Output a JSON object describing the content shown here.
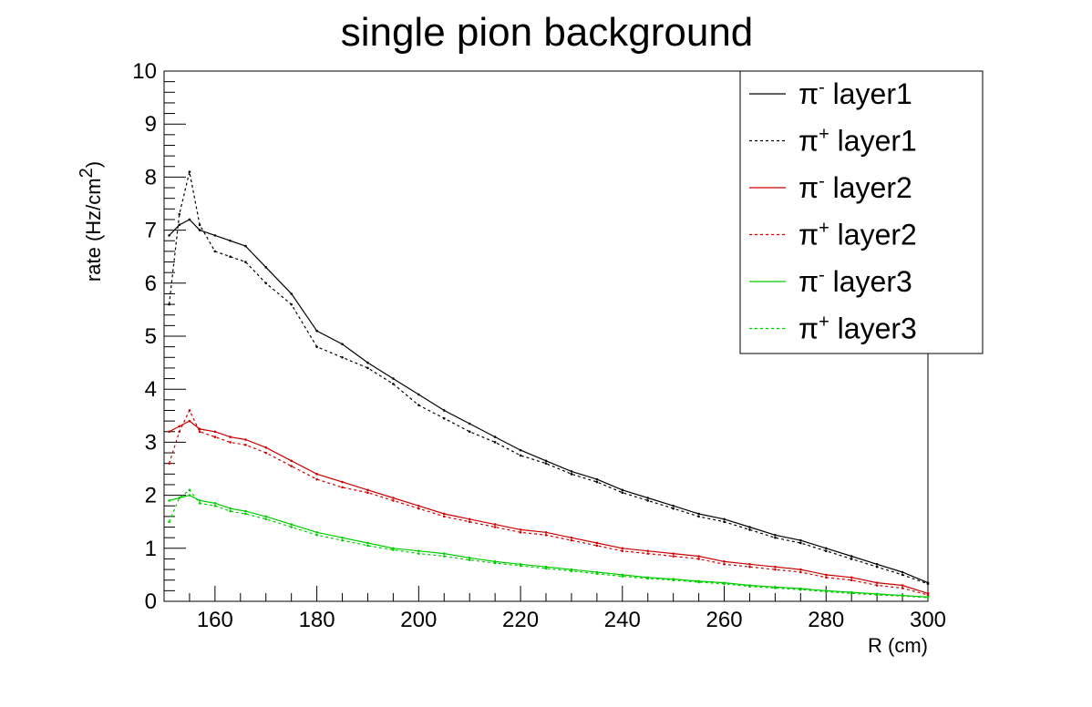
{
  "chart_data": {
    "type": "line",
    "title": "single pion background",
    "xlabel": "R (cm)",
    "ylabel": "rate (Hz/cm",
    "ylabel_sup": "2",
    "ylabel_end": ")",
    "xlim": [
      150,
      300
    ],
    "ylim": [
      0,
      10
    ],
    "x_ticks": [
      160,
      180,
      200,
      220,
      240,
      260,
      280,
      300
    ],
    "y_ticks": [
      0,
      1,
      2,
      3,
      4,
      5,
      6,
      7,
      8,
      9,
      10
    ],
    "legend_position": "top-right",
    "grid": false,
    "x": [
      151,
      153,
      155,
      157,
      160,
      163,
      166,
      170,
      175,
      180,
      185,
      190,
      195,
      200,
      205,
      210,
      215,
      220,
      225,
      230,
      235,
      240,
      245,
      250,
      255,
      260,
      265,
      270,
      275,
      280,
      285,
      290,
      295,
      300
    ],
    "series": [
      {
        "name": "π⁻ layer1",
        "label_base": "π",
        "label_sup": "-",
        "label_rest": " layer1",
        "color": "#000000",
        "dash": "solid",
        "values": [
          6.9,
          7.1,
          7.2,
          7.0,
          6.9,
          6.8,
          6.7,
          6.3,
          5.8,
          5.1,
          4.85,
          4.5,
          4.2,
          3.9,
          3.6,
          3.35,
          3.1,
          2.85,
          2.65,
          2.45,
          2.3,
          2.1,
          1.95,
          1.8,
          1.65,
          1.55,
          1.4,
          1.25,
          1.15,
          1.0,
          0.85,
          0.7,
          0.55,
          0.35
        ]
      },
      {
        "name": "π⁺ layer1",
        "label_base": "π",
        "label_sup": "+",
        "label_rest": " layer1",
        "color": "#000000",
        "dash": "dotted",
        "values": [
          5.6,
          7.3,
          8.1,
          7.1,
          6.6,
          6.5,
          6.4,
          6.0,
          5.6,
          4.8,
          4.6,
          4.4,
          4.1,
          3.7,
          3.45,
          3.2,
          3.0,
          2.75,
          2.6,
          2.4,
          2.25,
          2.05,
          1.9,
          1.75,
          1.6,
          1.5,
          1.35,
          1.2,
          1.1,
          0.95,
          0.8,
          0.65,
          0.5,
          0.33
        ]
      },
      {
        "name": "π⁻ layer2",
        "label_base": "π",
        "label_sup": "-",
        "label_rest": " layer2",
        "color": "#cc0000",
        "dash": "solid",
        "values": [
          3.2,
          3.3,
          3.4,
          3.25,
          3.2,
          3.1,
          3.05,
          2.9,
          2.65,
          2.4,
          2.25,
          2.1,
          1.95,
          1.8,
          1.65,
          1.55,
          1.45,
          1.35,
          1.3,
          1.2,
          1.1,
          1.0,
          0.95,
          0.9,
          0.85,
          0.75,
          0.7,
          0.65,
          0.6,
          0.5,
          0.45,
          0.35,
          0.3,
          0.15
        ]
      },
      {
        "name": "π⁺ layer2",
        "label_base": "π",
        "label_sup": "+",
        "label_rest": " layer2",
        "color": "#cc0000",
        "dash": "dotted",
        "values": [
          2.6,
          3.2,
          3.6,
          3.2,
          3.1,
          3.0,
          2.95,
          2.8,
          2.55,
          2.3,
          2.15,
          2.05,
          1.9,
          1.75,
          1.6,
          1.5,
          1.4,
          1.3,
          1.25,
          1.15,
          1.05,
          0.95,
          0.9,
          0.85,
          0.8,
          0.7,
          0.65,
          0.6,
          0.55,
          0.45,
          0.4,
          0.3,
          0.25,
          0.12
        ]
      },
      {
        "name": "π⁻ layer3",
        "label_base": "π",
        "label_sup": "-",
        "label_rest": " layer3",
        "color": "#00cc00",
        "dash": "solid",
        "values": [
          1.9,
          1.95,
          2.0,
          1.9,
          1.85,
          1.75,
          1.7,
          1.6,
          1.45,
          1.3,
          1.2,
          1.1,
          1.0,
          0.95,
          0.9,
          0.82,
          0.75,
          0.7,
          0.65,
          0.6,
          0.55,
          0.5,
          0.45,
          0.42,
          0.38,
          0.35,
          0.3,
          0.27,
          0.24,
          0.2,
          0.17,
          0.14,
          0.11,
          0.08
        ]
      },
      {
        "name": "π⁺ layer3",
        "label_base": "π",
        "label_sup": "+",
        "label_rest": " layer3",
        "color": "#00cc00",
        "dash": "dotted",
        "values": [
          1.5,
          1.95,
          2.1,
          1.85,
          1.8,
          1.7,
          1.65,
          1.55,
          1.4,
          1.25,
          1.15,
          1.05,
          0.97,
          0.9,
          0.85,
          0.78,
          0.72,
          0.67,
          0.62,
          0.57,
          0.52,
          0.47,
          0.43,
          0.4,
          0.36,
          0.33,
          0.28,
          0.25,
          0.22,
          0.18,
          0.15,
          0.12,
          0.1,
          0.07
        ]
      }
    ]
  }
}
